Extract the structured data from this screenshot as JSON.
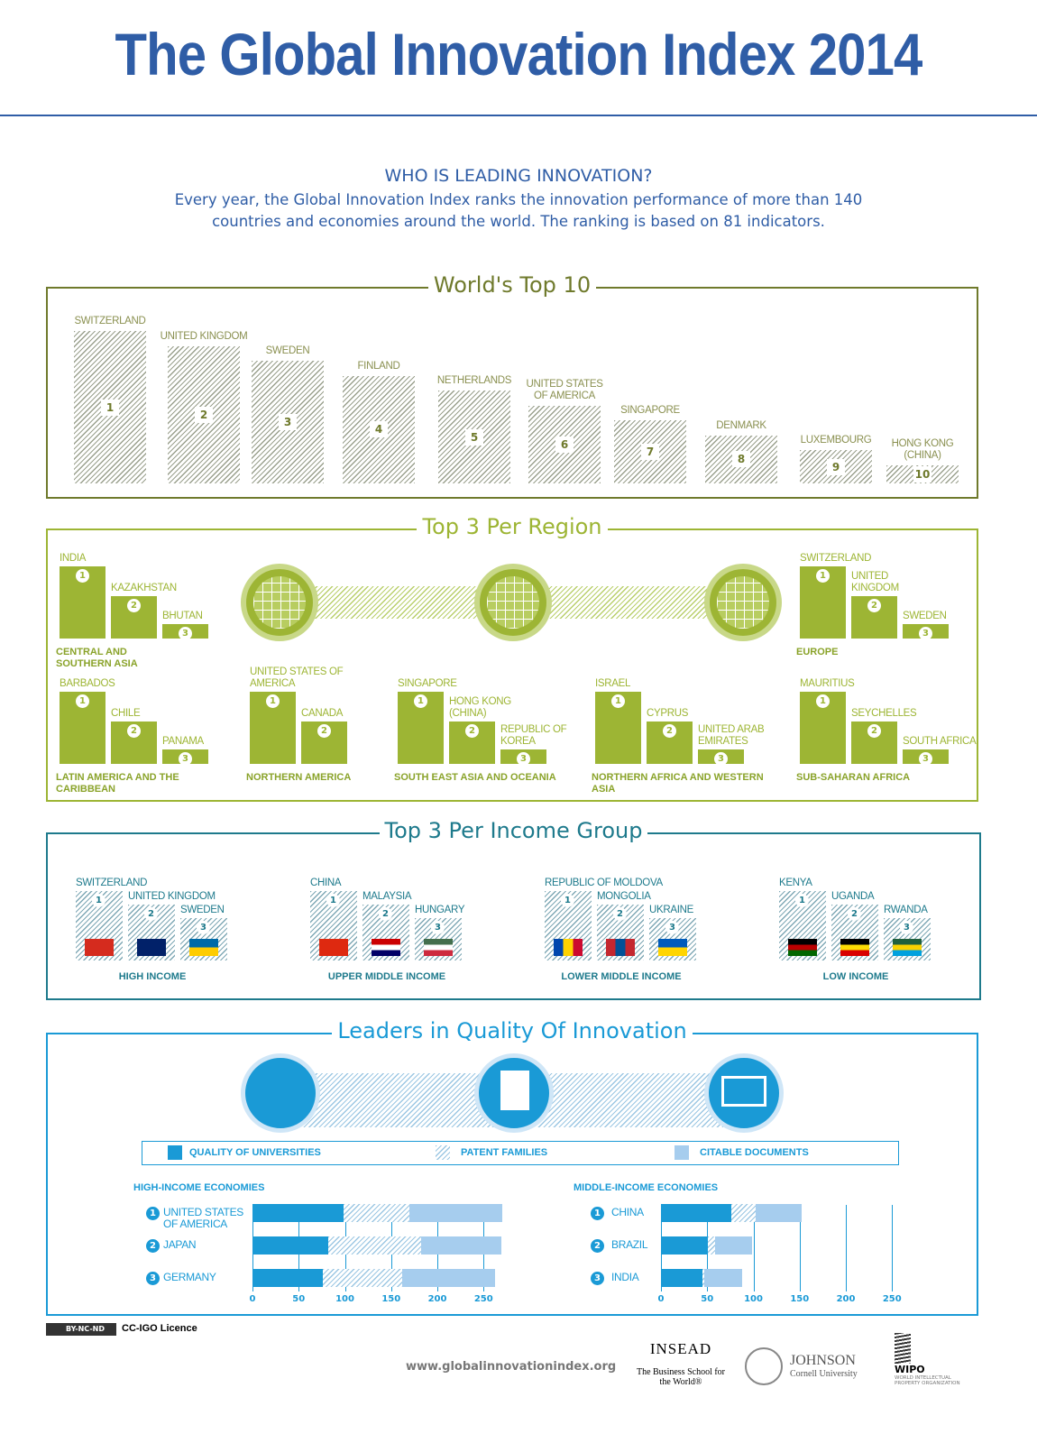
{
  "header": {
    "title": "The Global Innovation Index 2014",
    "subtitle": "WHO IS LEADING INNOVATION?",
    "intro": "Every year, the Global Innovation Index ranks the innovation performance of more than 140 countries and economies around the world. The ranking is based on 81 indicators."
  },
  "colors": {
    "title": "#2f5da6",
    "top10": "#6f7a2c",
    "region": "#9db534",
    "income": "#1e7a8c",
    "quality": "#1a9ad6",
    "citable": "#a6cdee"
  },
  "top10": {
    "title": "World's Top 10",
    "items": [
      {
        "rank": "1",
        "name": "SWITZERLAND"
      },
      {
        "rank": "2",
        "name": "UNITED KINGDOM"
      },
      {
        "rank": "3",
        "name": "SWEDEN"
      },
      {
        "rank": "4",
        "name": "FINLAND"
      },
      {
        "rank": "5",
        "name": "NETHERLANDS"
      },
      {
        "rank": "6",
        "name": "UNITED STATES OF AMERICA"
      },
      {
        "rank": "7",
        "name": "SINGAPORE"
      },
      {
        "rank": "8",
        "name": "DENMARK"
      },
      {
        "rank": "9",
        "name": "LUXEMBOURG"
      },
      {
        "rank": "10",
        "name": "HONG KONG (CHINA)"
      }
    ]
  },
  "regions": {
    "title": "Top 3 Per Region",
    "groups": [
      {
        "name": "CENTRAL AND SOUTHERN ASIA",
        "items": [
          "INDIA",
          "KAZAKHSTAN",
          "BHUTAN"
        ]
      },
      {
        "name": "EUROPE",
        "items": [
          "SWITZERLAND",
          "UNITED KINGDOM",
          "SWEDEN"
        ]
      },
      {
        "name": "LATIN AMERICA AND THE CARIBBEAN",
        "items": [
          "BARBADOS",
          "CHILE",
          "PANAMA"
        ]
      },
      {
        "name": "NORTHERN AMERICA",
        "items": [
          "UNITED STATES OF AMERICA",
          "CANADA"
        ]
      },
      {
        "name": "SOUTH EAST ASIA AND OCEANIA",
        "items": [
          "SINGAPORE",
          "HONG KONG (CHINA)",
          "REPUBLIC OF KOREA"
        ]
      },
      {
        "name": "NORTHERN AFRICA AND WESTERN ASIA",
        "items": [
          "ISRAEL",
          "CYPRUS",
          "UNITED ARAB EMIRATES"
        ]
      },
      {
        "name": "SUB-SAHARAN AFRICA",
        "items": [
          "MAURITIUS",
          "SEYCHELLES",
          "SOUTH AFRICA"
        ]
      }
    ]
  },
  "income": {
    "title": "Top 3 Per Income Group",
    "groups": [
      {
        "name": "HIGH INCOME",
        "items": [
          "SWITZERLAND",
          "UNITED KINGDOM",
          "SWEDEN"
        ]
      },
      {
        "name": "UPPER MIDDLE INCOME",
        "items": [
          "CHINA",
          "MALAYSIA",
          "HUNGARY"
        ]
      },
      {
        "name": "LOWER MIDDLE INCOME",
        "items": [
          "REPUBLIC OF MOLDOVA",
          "MONGOLIA",
          "UKRAINE"
        ]
      },
      {
        "name": "LOW INCOME",
        "items": [
          "KENYA",
          "UGANDA",
          "RWANDA"
        ]
      }
    ]
  },
  "quality": {
    "title": "Leaders in Quality Of Innovation",
    "legend": [
      "QUALITY OF UNIVERSITIES",
      "PATENT FAMILIES",
      "CITABLE DOCUMENTS"
    ]
  },
  "chart_data": [
    {
      "type": "bar",
      "stacked": true,
      "orientation": "horizontal",
      "title": "HIGH-INCOME ECONOMIES",
      "categories": [
        "UNITED STATES OF AMERICA",
        "JAPAN",
        "GERMANY"
      ],
      "ranks": [
        "1",
        "2",
        "3"
      ],
      "series": [
        {
          "name": "QUALITY OF UNIVERSITIES",
          "values": [
            99,
            82,
            76
          ]
        },
        {
          "name": "PATENT FAMILIES",
          "values": [
            71,
            100,
            86
          ]
        },
        {
          "name": "CITABLE DOCUMENTS",
          "values": [
            100,
            87,
            100
          ]
        }
      ],
      "xlim": [
        0,
        270
      ],
      "xticks": [
        "0",
        "50",
        "100",
        "150",
        "200",
        "250"
      ],
      "grid": true
    },
    {
      "type": "bar",
      "stacked": true,
      "orientation": "horizontal",
      "title": "MIDDLE-INCOME ECONOMIES",
      "categories": [
        "CHINA",
        "BRAZIL",
        "INDIA"
      ],
      "ranks": [
        "1",
        "2",
        "3"
      ],
      "series": [
        {
          "name": "QUALITY OF UNIVERSITIES",
          "values": [
            76,
            51,
            45
          ]
        },
        {
          "name": "PATENT FAMILIES",
          "values": [
            26,
            8,
            2
          ]
        },
        {
          "name": "CITABLE DOCUMENTS",
          "values": [
            50,
            40,
            41
          ]
        }
      ],
      "xlim": [
        0,
        270
      ],
      "xticks": [
        "0",
        "50",
        "100",
        "150",
        "200",
        "250"
      ],
      "grid": true
    }
  ],
  "footer": {
    "licence_badge": "BY-NC-ND",
    "licence": "CC-IGO Licence",
    "url": "www.globalinnovationindex.org",
    "insead": "INSEAD",
    "insead_tag": "The Business School for the World®",
    "johnson": "JOHNSON",
    "johnson_sub": "Cornell University",
    "wipo": "WIPO",
    "wipo_sub": "WORLD INTELLECTUAL PROPERTY ORGANIZATION"
  }
}
